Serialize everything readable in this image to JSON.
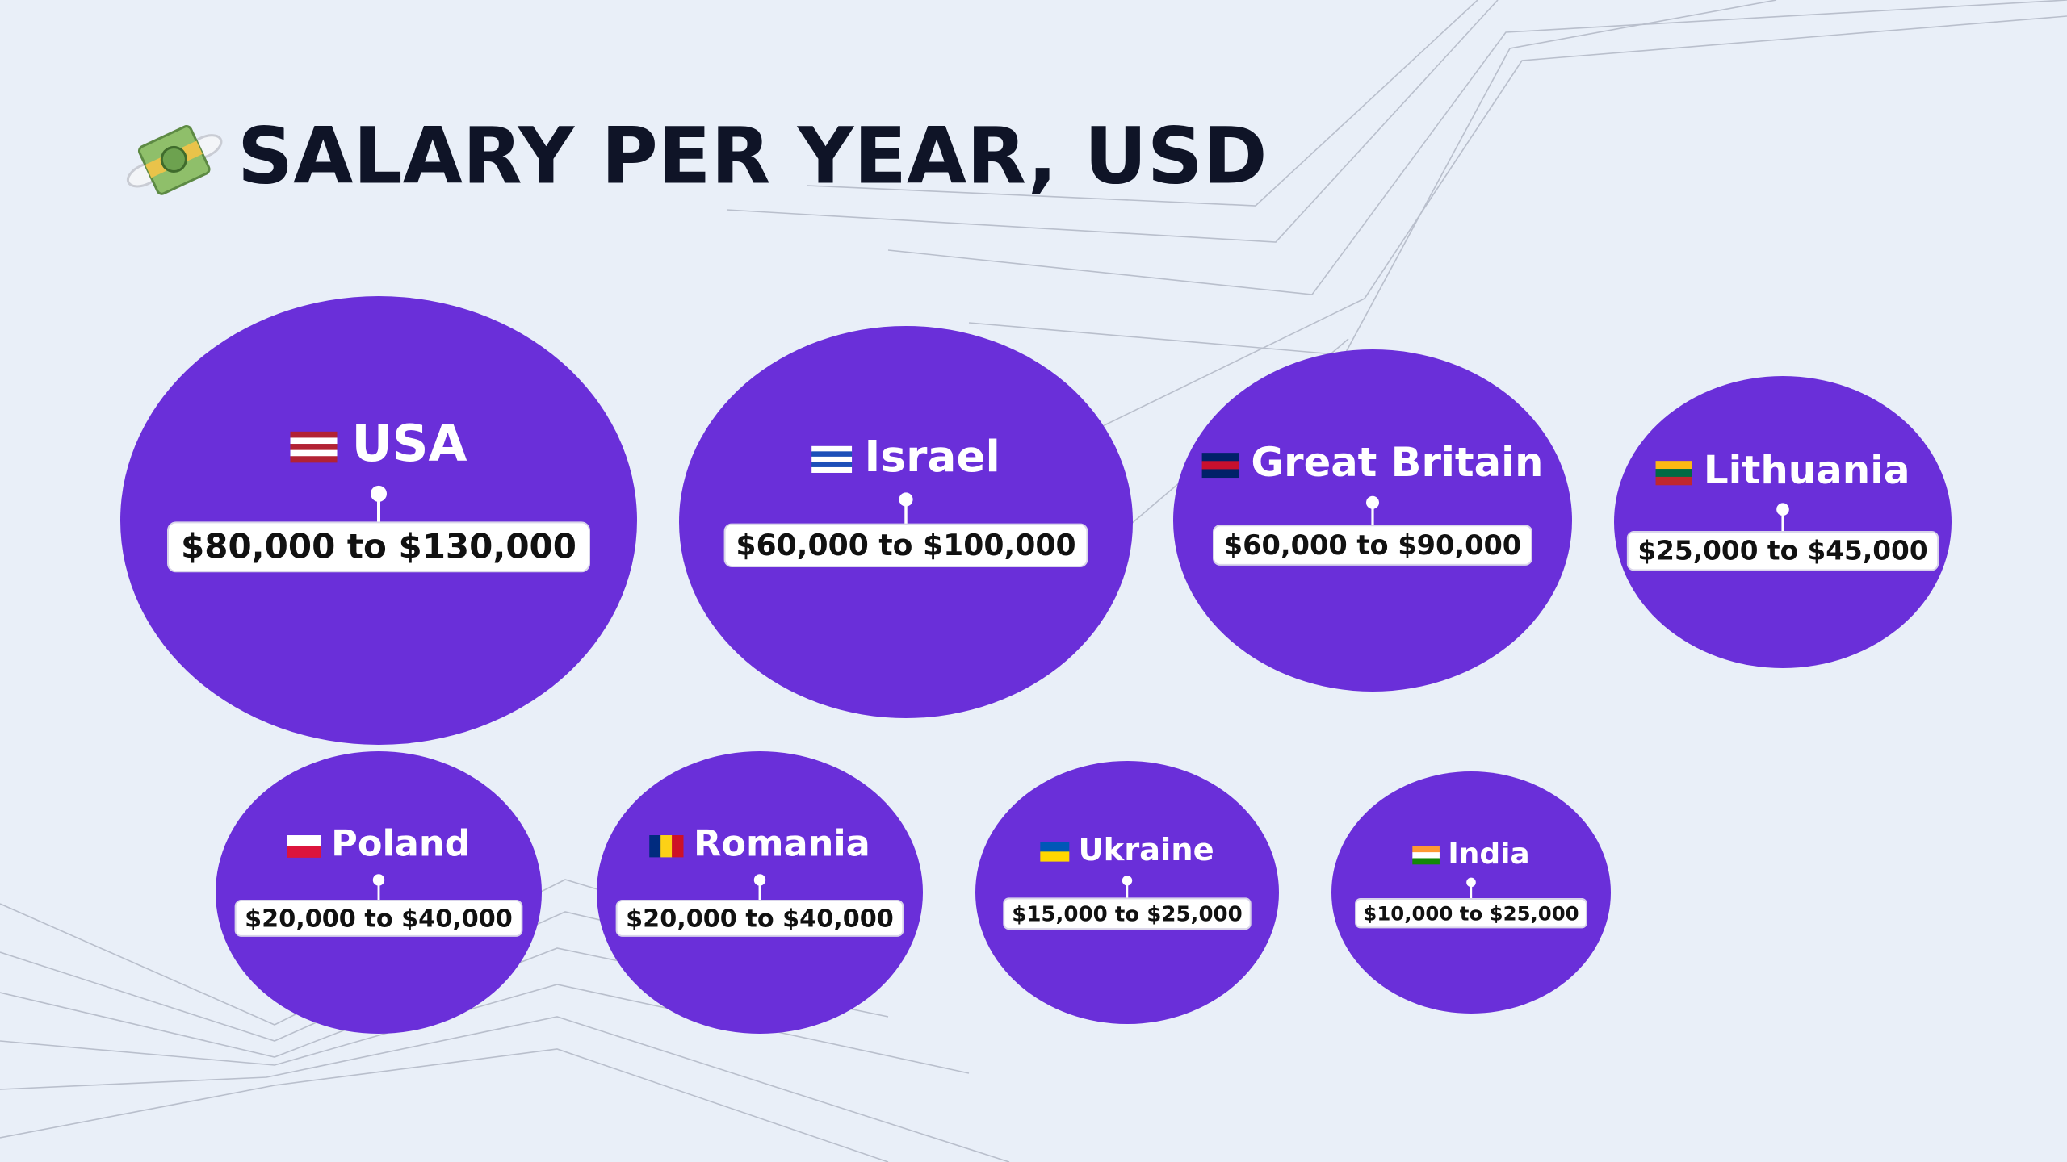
{
  "title": "SALARY PER YEAR, USD",
  "countries": [
    {
      "name": "USA",
      "range": "$80,000 to $130,000"
    },
    {
      "name": "Israel",
      "range": "$60,000 to $100,000"
    },
    {
      "name": "Great Britain",
      "range": "$60,000 to $90,000"
    },
    {
      "name": "Lithuania",
      "range": "$25,000 to $45,000"
    },
    {
      "name": "Poland",
      "range": "$20,000 to $40,000"
    },
    {
      "name": "Romania",
      "range": "$20,000 to $40,000"
    },
    {
      "name": "Ukraine",
      "range": "$15,000 to $25,000"
    },
    {
      "name": "India",
      "range": "$10,000 to $25,000"
    }
  ]
}
